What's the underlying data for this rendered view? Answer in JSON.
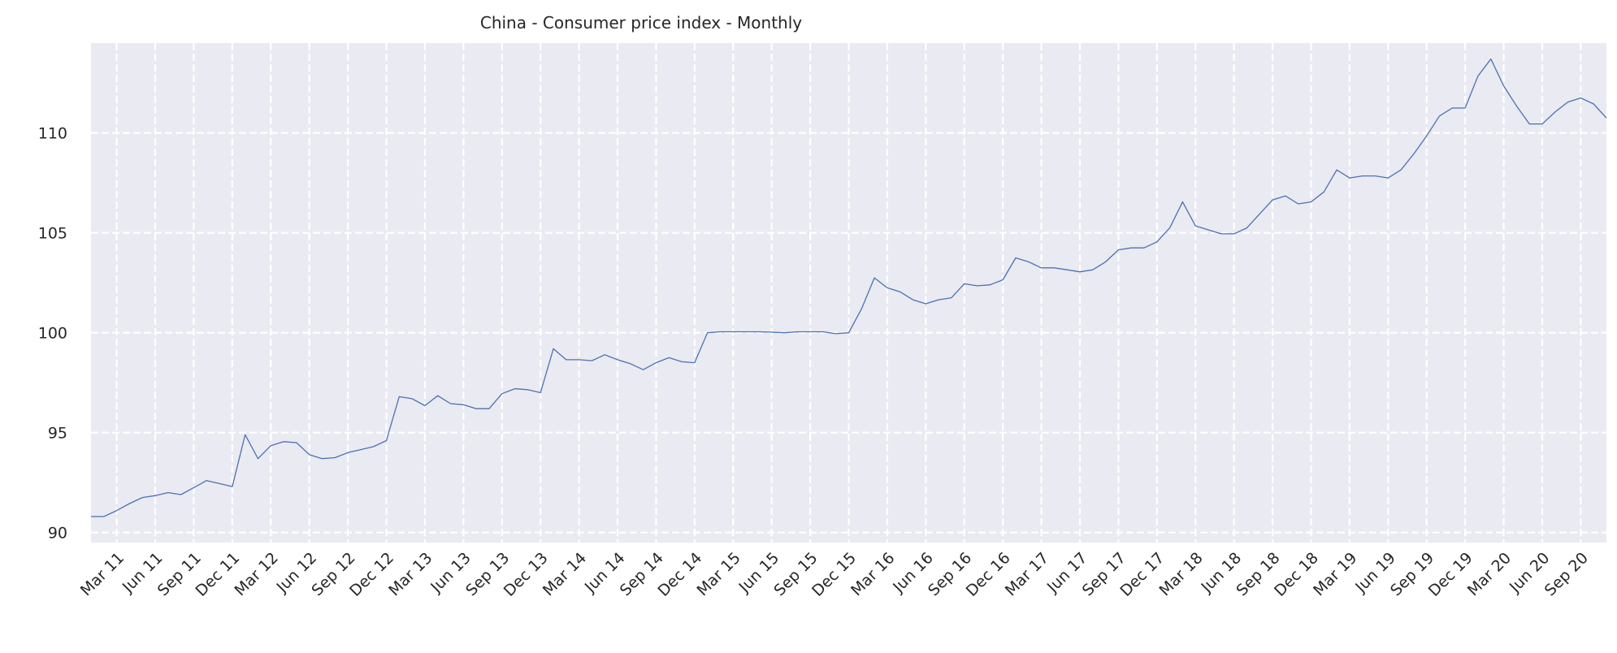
{
  "chart_data": {
    "type": "line",
    "title": "China - Consumer price index - Monthly",
    "xlabel": "",
    "ylabel": "",
    "x_range": [
      "2011-01",
      "2020-11"
    ],
    "ylim": [
      89.5,
      114.5
    ],
    "yticks": [
      90,
      95,
      100,
      105,
      110
    ],
    "xticks": [
      "Mar 11",
      "Jun 11",
      "Sep 11",
      "Dec 11",
      "Mar 12",
      "Jun 12",
      "Sep 12",
      "Dec 12",
      "Mar 13",
      "Jun 13",
      "Sep 13",
      "Dec 13",
      "Mar 14",
      "Jun 14",
      "Sep 14",
      "Dec 14",
      "Mar 15",
      "Jun 15",
      "Sep 15",
      "Dec 15",
      "Mar 16",
      "Jun 16",
      "Sep 16",
      "Dec 16",
      "Mar 17",
      "Jun 17",
      "Sep 17",
      "Dec 17",
      "Mar 18",
      "Jun 18",
      "Sep 18",
      "Dec 18",
      "Mar 19",
      "Jun 19",
      "Sep 19",
      "Dec 19",
      "Mar 20",
      "Jun 20",
      "Sep 20"
    ],
    "grid": true,
    "background": "#eaeaf2",
    "line_color": "#4c72b0",
    "series": [
      {
        "x": [
          "2011-01",
          "2011-02",
          "2011-03",
          "2011-04",
          "2011-05",
          "2011-06",
          "2011-07",
          "2011-08",
          "2011-09",
          "2011-10",
          "2011-11",
          "2011-12",
          "2012-01",
          "2012-02",
          "2012-03",
          "2012-04",
          "2012-05",
          "2012-06",
          "2012-07",
          "2012-08",
          "2012-09",
          "2012-10",
          "2012-11",
          "2012-12",
          "2013-01",
          "2013-02",
          "2013-03",
          "2013-04",
          "2013-05",
          "2013-06",
          "2013-07",
          "2013-08",
          "2013-09",
          "2013-10",
          "2013-11",
          "2013-12",
          "2014-01",
          "2014-02",
          "2014-03",
          "2014-04",
          "2014-05",
          "2014-06",
          "2014-07",
          "2014-08",
          "2014-09",
          "2014-10",
          "2014-11",
          "2014-12",
          "2015-01",
          "2015-02",
          "2015-03",
          "2015-04",
          "2015-05",
          "2015-06",
          "2015-07",
          "2015-08",
          "2015-09",
          "2015-10",
          "2015-11",
          "2015-12",
          "2016-01",
          "2016-02",
          "2016-03",
          "2016-04",
          "2016-05",
          "2016-06",
          "2016-07",
          "2016-08",
          "2016-09",
          "2016-10",
          "2016-11",
          "2016-12",
          "2017-01",
          "2017-02",
          "2017-03",
          "2017-04",
          "2017-05",
          "2017-06",
          "2017-07",
          "2017-08",
          "2017-09",
          "2017-10",
          "2017-11",
          "2017-12",
          "2018-01",
          "2018-02",
          "2018-03",
          "2018-04",
          "2018-05",
          "2018-06",
          "2018-07",
          "2018-08",
          "2018-09",
          "2018-10",
          "2018-11",
          "2018-12",
          "2019-01",
          "2019-02",
          "2019-03",
          "2019-04",
          "2019-05",
          "2019-06",
          "2019-07",
          "2019-08",
          "2019-09",
          "2019-10",
          "2019-11",
          "2019-12",
          "2020-01",
          "2020-02",
          "2020-03",
          "2020-04",
          "2020-05",
          "2020-06",
          "2020-07",
          "2020-08",
          "2020-09",
          "2020-10",
          "2020-11"
        ],
        "y": [
          90.8,
          90.8,
          91.1,
          91.45,
          91.75,
          91.85,
          92.0,
          91.9,
          92.25,
          92.6,
          92.45,
          92.3,
          94.9,
          93.7,
          94.35,
          94.55,
          94.5,
          93.9,
          93.7,
          93.75,
          94.0,
          94.15,
          94.3,
          94.6,
          96.8,
          96.7,
          96.35,
          96.85,
          96.45,
          96.4,
          96.2,
          96.2,
          96.95,
          97.2,
          97.15,
          97.0,
          99.2,
          98.65,
          98.65,
          98.6,
          98.9,
          98.65,
          98.45,
          98.15,
          98.5,
          98.75,
          98.55,
          98.5,
          100.0,
          100.05,
          100.05,
          100.05,
          100.05,
          100.03,
          100.0,
          100.05,
          100.05,
          100.05,
          99.95,
          100.0,
          101.2,
          102.75,
          102.25,
          102.05,
          101.65,
          101.45,
          101.65,
          101.75,
          102.45,
          102.35,
          102.4,
          102.65,
          103.75,
          103.55,
          103.25,
          103.25,
          103.15,
          103.05,
          103.15,
          103.55,
          104.15,
          104.25,
          104.25,
          104.55,
          105.25,
          106.55,
          105.35,
          105.15,
          104.95,
          104.95,
          105.25,
          105.95,
          106.65,
          106.85,
          106.45,
          106.55,
          107.05,
          108.15,
          107.75,
          107.85,
          107.85,
          107.75,
          108.15,
          108.95,
          109.85,
          110.85,
          111.25,
          111.25,
          112.85,
          113.7,
          112.35,
          111.35,
          110.45,
          110.45,
          111.05,
          111.55,
          111.75,
          111.45,
          110.75
        ]
      }
    ]
  }
}
